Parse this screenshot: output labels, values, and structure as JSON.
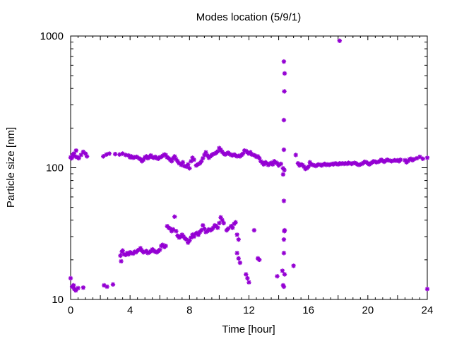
{
  "chart_data": {
    "type": "scatter",
    "title": "Modes location (5/9/1)",
    "xlabel": "Time [hour]",
    "ylabel": "Particle size [nm]",
    "xlim": [
      0,
      24
    ],
    "ylim": [
      10,
      1000
    ],
    "yscale": "log",
    "x_ticks": [
      0,
      4,
      8,
      12,
      16,
      20,
      24
    ],
    "y_ticks": [
      10,
      100,
      1000
    ],
    "grid": false,
    "legend": "none",
    "marker_color": "#9400d3",
    "series": [
      {
        "values": [
          [
            0.0,
            120
          ],
          [
            0.07,
            118
          ],
          [
            0.14,
            125
          ],
          [
            0.22,
            128
          ],
          [
            0.3,
            122
          ],
          [
            0.37,
            135
          ],
          [
            0.45,
            120
          ],
          [
            0.55,
            118
          ],
          [
            0.7,
            125
          ],
          [
            0.85,
            132
          ],
          [
            1.0,
            128
          ],
          [
            1.1,
            122
          ],
          [
            2.2,
            122
          ],
          [
            2.4,
            126
          ],
          [
            2.6,
            128
          ],
          [
            3.0,
            127
          ],
          [
            3.3,
            126
          ],
          [
            3.5,
            128
          ],
          [
            3.7,
            125
          ],
          [
            3.9,
            124
          ],
          [
            4.0,
            120
          ],
          [
            4.1,
            122
          ],
          [
            4.2,
            119
          ],
          [
            4.3,
            120
          ],
          [
            4.45,
            121
          ],
          [
            4.6,
            118
          ],
          [
            4.7,
            116
          ],
          [
            4.8,
            112
          ],
          [
            4.9,
            115
          ],
          [
            5.0,
            120
          ],
          [
            5.1,
            122
          ],
          [
            5.2,
            118
          ],
          [
            5.3,
            121
          ],
          [
            5.4,
            124
          ],
          [
            5.5,
            120
          ],
          [
            5.6,
            119
          ],
          [
            5.7,
            121
          ],
          [
            5.8,
            118
          ],
          [
            5.9,
            117
          ],
          [
            6.0,
            120
          ],
          [
            6.1,
            121
          ],
          [
            6.2,
            123
          ],
          [
            6.3,
            126
          ],
          [
            6.4,
            125
          ],
          [
            6.5,
            120
          ],
          [
            6.6,
            118
          ],
          [
            6.7,
            115
          ],
          [
            6.8,
            112
          ],
          [
            6.9,
            118
          ],
          [
            7.0,
            122
          ],
          [
            7.1,
            116
          ],
          [
            7.2,
            112
          ],
          [
            7.3,
            108
          ],
          [
            7.45,
            105
          ],
          [
            7.55,
            110
          ],
          [
            7.65,
            103
          ],
          [
            7.8,
            102
          ],
          [
            7.9,
            106
          ],
          [
            8.0,
            99
          ],
          [
            8.1,
            112
          ],
          [
            8.2,
            119
          ],
          [
            8.3,
            115
          ],
          [
            8.45,
            104
          ],
          [
            8.55,
            106
          ],
          [
            8.7,
            108
          ],
          [
            8.8,
            112
          ],
          [
            8.9,
            118
          ],
          [
            9.0,
            125
          ],
          [
            9.1,
            131
          ],
          [
            9.2,
            124
          ],
          [
            9.3,
            119
          ],
          [
            9.4,
            122
          ],
          [
            9.5,
            125
          ],
          [
            9.6,
            127
          ],
          [
            9.7,
            128
          ],
          [
            9.8,
            130
          ],
          [
            9.9,
            133
          ],
          [
            10.0,
            141
          ],
          [
            10.1,
            137
          ],
          [
            10.2,
            132
          ],
          [
            10.3,
            128
          ],
          [
            10.4,
            126
          ],
          [
            10.5,
            128
          ],
          [
            10.6,
            130
          ],
          [
            10.7,
            127
          ],
          [
            10.8,
            125
          ],
          [
            10.9,
            124
          ],
          [
            11.0,
            126
          ],
          [
            11.1,
            124
          ],
          [
            11.2,
            122
          ],
          [
            11.3,
            123
          ],
          [
            11.4,
            122
          ],
          [
            11.5,
            125
          ],
          [
            11.6,
            128
          ],
          [
            11.7,
            135
          ],
          [
            11.8,
            134
          ],
          [
            11.9,
            131
          ],
          [
            12.0,
            128
          ],
          [
            12.1,
            131
          ],
          [
            12.2,
            126
          ],
          [
            12.3,
            125
          ],
          [
            12.4,
            124
          ],
          [
            12.5,
            121
          ],
          [
            12.6,
            122
          ],
          [
            12.7,
            118
          ],
          [
            12.8,
            112
          ],
          [
            12.9,
            109
          ],
          [
            13.0,
            106
          ],
          [
            13.1,
            110
          ],
          [
            13.2,
            108
          ],
          [
            13.3,
            105
          ],
          [
            13.4,
            107
          ],
          [
            13.5,
            109
          ],
          [
            13.6,
            106
          ],
          [
            13.7,
            112
          ],
          [
            13.8,
            110
          ],
          [
            13.9,
            108
          ],
          [
            14.0,
            104
          ],
          [
            14.15,
            107
          ],
          [
            14.3,
            99
          ],
          [
            14.38,
            96
          ],
          [
            15.15,
            125
          ],
          [
            15.3,
            108
          ],
          [
            15.4,
            104
          ],
          [
            15.5,
            106
          ],
          [
            15.6,
            105
          ],
          [
            15.7,
            102
          ],
          [
            15.8,
            98
          ],
          [
            15.9,
            99
          ],
          [
            16.0,
            102
          ],
          [
            16.1,
            110
          ],
          [
            16.2,
            106
          ],
          [
            16.3,
            105
          ],
          [
            16.4,
            104
          ],
          [
            16.5,
            103
          ],
          [
            16.6,
            105
          ],
          [
            16.7,
            106
          ],
          [
            16.8,
            105
          ],
          [
            16.9,
            104
          ],
          [
            17.0,
            106
          ],
          [
            17.1,
            107
          ],
          [
            17.2,
            105
          ],
          [
            17.3,
            106
          ],
          [
            17.4,
            105
          ],
          [
            17.5,
            106
          ],
          [
            17.6,
            107
          ],
          [
            17.7,
            106
          ],
          [
            17.8,
            108
          ],
          [
            17.9,
            107
          ],
          [
            18.0,
            106
          ],
          [
            18.1,
            108
          ],
          [
            18.2,
            107
          ],
          [
            18.3,
            108
          ],
          [
            18.4,
            107
          ],
          [
            18.5,
            108
          ],
          [
            18.6,
            107
          ],
          [
            18.7,
            109
          ],
          [
            18.8,
            108
          ],
          [
            18.9,
            107
          ],
          [
            19.0,
            108
          ],
          [
            19.1,
            109
          ],
          [
            19.2,
            108
          ],
          [
            19.3,
            106
          ],
          [
            19.4,
            105
          ],
          [
            19.5,
            106
          ],
          [
            19.6,
            107
          ],
          [
            19.7,
            109
          ],
          [
            19.8,
            111
          ],
          [
            19.9,
            110
          ],
          [
            20.0,
            108
          ],
          [
            20.1,
            106
          ],
          [
            20.2,
            108
          ],
          [
            20.3,
            110
          ],
          [
            20.4,
            112
          ],
          [
            20.5,
            111
          ],
          [
            20.6,
            110
          ],
          [
            20.7,
            111
          ],
          [
            20.8,
            112
          ],
          [
            20.9,
            115
          ],
          [
            21.0,
            113
          ],
          [
            21.1,
            111
          ],
          [
            21.2,
            113
          ],
          [
            21.3,
            115
          ],
          [
            21.4,
            114
          ],
          [
            21.5,
            113
          ],
          [
            21.6,
            112
          ],
          [
            21.7,
            113
          ],
          [
            21.8,
            114
          ],
          [
            21.9,
            113
          ],
          [
            22.0,
            114
          ],
          [
            22.1,
            112
          ],
          [
            22.2,
            115
          ],
          [
            22.5,
            114
          ],
          [
            22.6,
            110
          ],
          [
            22.7,
            112
          ],
          [
            22.8,
            116
          ],
          [
            22.9,
            117
          ],
          [
            23.0,
            114
          ],
          [
            23.1,
            116
          ],
          [
            23.3,
            118
          ],
          [
            23.5,
            121
          ],
          [
            23.7,
            117
          ],
          [
            24.0,
            119
          ],
          [
            0.0,
            14.5
          ],
          [
            0.1,
            12.5
          ],
          [
            0.2,
            12.8
          ],
          [
            0.25,
            12.0
          ],
          [
            0.35,
            11.7
          ],
          [
            0.5,
            12.2
          ],
          [
            0.85,
            12.3
          ],
          [
            2.25,
            12.8
          ],
          [
            2.45,
            12.5
          ],
          [
            2.85,
            13.0
          ],
          [
            3.35,
            21.5
          ],
          [
            3.4,
            19.5
          ],
          [
            3.45,
            23.0
          ],
          [
            3.5,
            23.5
          ],
          [
            3.6,
            22.0
          ],
          [
            3.7,
            21.8
          ],
          [
            3.8,
            22.5
          ],
          [
            3.9,
            22.0
          ],
          [
            4.0,
            22.8
          ],
          [
            4.1,
            22.5
          ],
          [
            4.2,
            22.3
          ],
          [
            4.3,
            23.0
          ],
          [
            4.4,
            22.8
          ],
          [
            4.5,
            23.5
          ],
          [
            4.6,
            23.8
          ],
          [
            4.7,
            24.5
          ],
          [
            4.8,
            23.5
          ],
          [
            4.9,
            22.8
          ],
          [
            5.0,
            23.0
          ],
          [
            5.1,
            23.3
          ],
          [
            5.2,
            22.5
          ],
          [
            5.3,
            22.8
          ],
          [
            5.4,
            23.2
          ],
          [
            5.5,
            24.0
          ],
          [
            5.6,
            23.5
          ],
          [
            5.7,
            23.0
          ],
          [
            5.8,
            22.8
          ],
          [
            5.9,
            23.3
          ],
          [
            6.0,
            23.8
          ],
          [
            6.1,
            25.5
          ],
          [
            6.2,
            26.0
          ],
          [
            6.3,
            25.0
          ],
          [
            6.4,
            25.5
          ],
          [
            6.5,
            36.0
          ],
          [
            6.6,
            35.0
          ],
          [
            6.7,
            34.5
          ],
          [
            6.8,
            33.0
          ],
          [
            6.9,
            34.0
          ],
          [
            7.0,
            42.5
          ],
          [
            7.1,
            33.0
          ],
          [
            7.2,
            30.5
          ],
          [
            7.3,
            29.5
          ],
          [
            7.4,
            30.0
          ],
          [
            7.5,
            31.0
          ],
          [
            7.6,
            30.0
          ],
          [
            7.7,
            29.0
          ],
          [
            7.8,
            28.5
          ],
          [
            7.9,
            27.0
          ],
          [
            8.0,
            28.0
          ],
          [
            8.1,
            29.5
          ],
          [
            8.2,
            31.0
          ],
          [
            8.3,
            30.0
          ],
          [
            8.4,
            31.5
          ],
          [
            8.5,
            32.0
          ],
          [
            8.6,
            31.0
          ],
          [
            8.7,
            32.5
          ],
          [
            8.8,
            33.5
          ],
          [
            8.9,
            36.5
          ],
          [
            9.0,
            34.5
          ],
          [
            9.1,
            32.5
          ],
          [
            9.2,
            33.0
          ],
          [
            9.3,
            34.0
          ],
          [
            9.4,
            33.5
          ],
          [
            9.5,
            34.0
          ],
          [
            9.6,
            35.0
          ],
          [
            9.7,
            36.5
          ],
          [
            9.8,
            36.0
          ],
          [
            9.9,
            35.0
          ],
          [
            10.0,
            38.0
          ],
          [
            10.1,
            42.0
          ],
          [
            10.2,
            40.0
          ],
          [
            10.3,
            38.0
          ],
          [
            10.5,
            33.5
          ],
          [
            10.6,
            34.5
          ],
          [
            10.8,
            36.0
          ],
          [
            10.9,
            35.0
          ],
          [
            11.0,
            37.5
          ],
          [
            11.1,
            38.5
          ],
          [
            11.2,
            31.0
          ],
          [
            11.3,
            28.5
          ],
          [
            11.2,
            22.5
          ],
          [
            11.3,
            20.5
          ],
          [
            11.4,
            19.0
          ],
          [
            11.8,
            15.5
          ],
          [
            11.9,
            14.5
          ],
          [
            12.0,
            13.5
          ],
          [
            12.35,
            33.5
          ],
          [
            12.6,
            20.5
          ],
          [
            12.7,
            20.0
          ],
          [
            13.9,
            15.0
          ],
          [
            14.25,
            16.5
          ],
          [
            14.3,
            12.8
          ],
          [
            14.35,
            12.5
          ],
          [
            14.4,
            15.5
          ],
          [
            15.0,
            18.0
          ],
          [
            24.0,
            12.0
          ],
          [
            14.35,
            22.5
          ],
          [
            14.35,
            28.5
          ],
          [
            14.38,
            33.0
          ],
          [
            14.4,
            33.5
          ],
          [
            14.35,
            56.0
          ],
          [
            14.3,
            89.0
          ],
          [
            14.35,
            137.0
          ],
          [
            14.35,
            230.0
          ],
          [
            14.38,
            380.0
          ],
          [
            14.4,
            520.0
          ],
          [
            14.35,
            640.0
          ],
          [
            18.1,
            920.0
          ]
        ]
      }
    ]
  }
}
